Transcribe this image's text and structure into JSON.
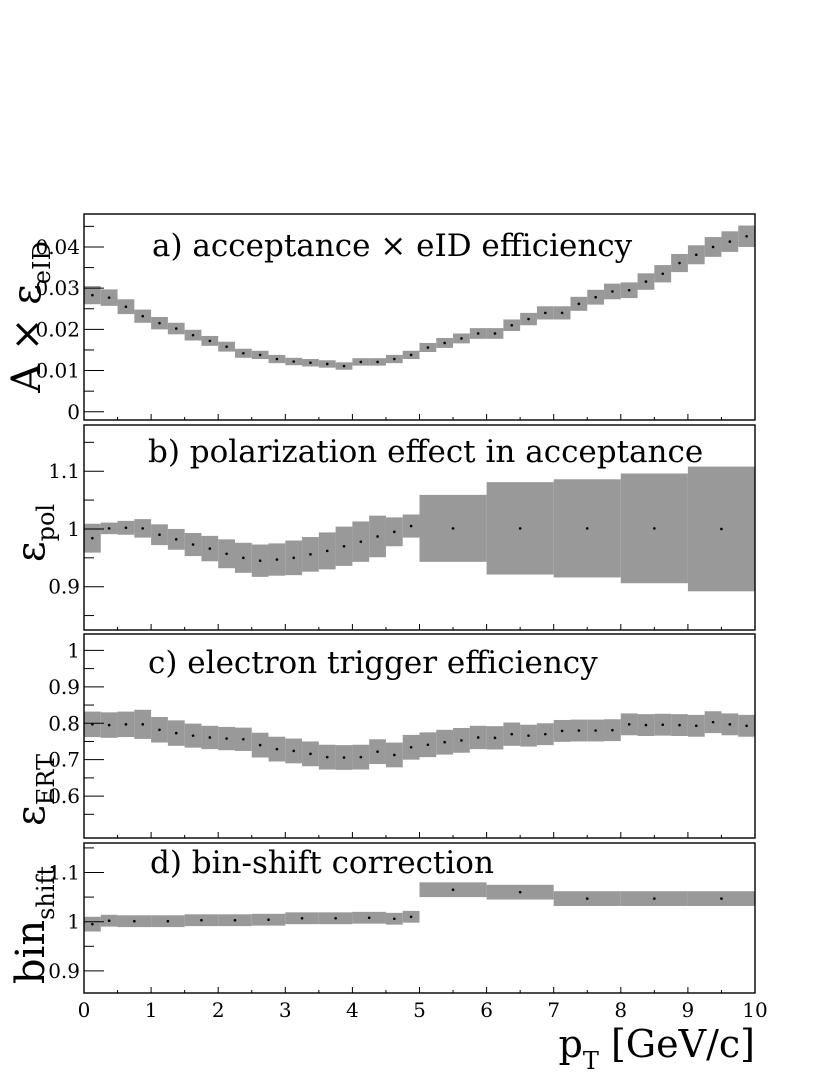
{
  "chart_data": [
    {
      "type": "scatter",
      "panel": "a",
      "title": "a) acceptance × eID efficiency",
      "ylabel_main": "A × ε",
      "ylabel_sub": "eID",
      "xlim": [
        0,
        10
      ],
      "ylim": [
        -0.002,
        0.048
      ],
      "yticks": [
        0,
        0.01,
        0.02,
        0.03,
        0.04
      ],
      "ytick_labels": [
        "0",
        "0.01",
        "0.02",
        "0.03",
        "0.04"
      ],
      "points": [
        {
          "x0": 0.0,
          "x1": 0.25,
          "y": 0.0283,
          "err": 0.0022
        },
        {
          "x0": 0.25,
          "x1": 0.5,
          "y": 0.0277,
          "err": 0.002
        },
        {
          "x0": 0.5,
          "x1": 0.75,
          "y": 0.0255,
          "err": 0.0018
        },
        {
          "x0": 0.75,
          "x1": 1.0,
          "y": 0.0232,
          "err": 0.0016
        },
        {
          "x0": 1.0,
          "x1": 1.25,
          "y": 0.0215,
          "err": 0.0015
        },
        {
          "x0": 1.25,
          "x1": 1.5,
          "y": 0.0202,
          "err": 0.0014
        },
        {
          "x0": 1.5,
          "x1": 1.75,
          "y": 0.0186,
          "err": 0.0013
        },
        {
          "x0": 1.75,
          "x1": 2.0,
          "y": 0.0172,
          "err": 0.0012
        },
        {
          "x0": 2.0,
          "x1": 2.25,
          "y": 0.0158,
          "err": 0.0012
        },
        {
          "x0": 2.25,
          "x1": 2.5,
          "y": 0.0142,
          "err": 0.0011
        },
        {
          "x0": 2.5,
          "x1": 2.75,
          "y": 0.0138,
          "err": 0.001
        },
        {
          "x0": 2.75,
          "x1": 3.0,
          "y": 0.0128,
          "err": 0.001
        },
        {
          "x0": 3.0,
          "x1": 3.25,
          "y": 0.0122,
          "err": 0.0009
        },
        {
          "x0": 3.25,
          "x1": 3.5,
          "y": 0.0119,
          "err": 0.0009
        },
        {
          "x0": 3.5,
          "x1": 3.75,
          "y": 0.0116,
          "err": 0.0009
        },
        {
          "x0": 3.75,
          "x1": 4.0,
          "y": 0.0111,
          "err": 0.0009
        },
        {
          "x0": 4.0,
          "x1": 4.25,
          "y": 0.0121,
          "err": 0.0009
        },
        {
          "x0": 4.25,
          "x1": 4.5,
          "y": 0.0121,
          "err": 0.0009
        },
        {
          "x0": 4.5,
          "x1": 4.75,
          "y": 0.0128,
          "err": 0.001
        },
        {
          "x0": 4.75,
          "x1": 5.0,
          "y": 0.0138,
          "err": 0.001
        },
        {
          "x0": 5.0,
          "x1": 5.25,
          "y": 0.0156,
          "err": 0.0011
        },
        {
          "x0": 5.25,
          "x1": 5.5,
          "y": 0.0167,
          "err": 0.0012
        },
        {
          "x0": 5.5,
          "x1": 5.75,
          "y": 0.0178,
          "err": 0.0012
        },
        {
          "x0": 5.75,
          "x1": 6.0,
          "y": 0.019,
          "err": 0.0013
        },
        {
          "x0": 6.0,
          "x1": 6.25,
          "y": 0.019,
          "err": 0.0013
        },
        {
          "x0": 6.25,
          "x1": 6.5,
          "y": 0.021,
          "err": 0.0014
        },
        {
          "x0": 6.5,
          "x1": 6.75,
          "y": 0.0225,
          "err": 0.0015
        },
        {
          "x0": 6.75,
          "x1": 7.0,
          "y": 0.024,
          "err": 0.0016
        },
        {
          "x0": 7.0,
          "x1": 7.25,
          "y": 0.024,
          "err": 0.0016
        },
        {
          "x0": 7.25,
          "x1": 7.5,
          "y": 0.0262,
          "err": 0.0017
        },
        {
          "x0": 7.5,
          "x1": 7.75,
          "y": 0.0278,
          "err": 0.0018
        },
        {
          "x0": 7.75,
          "x1": 8.0,
          "y": 0.0292,
          "err": 0.0019
        },
        {
          "x0": 8.0,
          "x1": 8.25,
          "y": 0.0295,
          "err": 0.0019
        },
        {
          "x0": 8.25,
          "x1": 8.5,
          "y": 0.0316,
          "err": 0.002
        },
        {
          "x0": 8.5,
          "x1": 8.75,
          "y": 0.0335,
          "err": 0.0021
        },
        {
          "x0": 8.75,
          "x1": 9.0,
          "y": 0.0361,
          "err": 0.0022
        },
        {
          "x0": 9.0,
          "x1": 9.25,
          "y": 0.0381,
          "err": 0.0023
        },
        {
          "x0": 9.25,
          "x1": 9.5,
          "y": 0.04,
          "err": 0.0024
        },
        {
          "x0": 9.5,
          "x1": 9.75,
          "y": 0.0413,
          "err": 0.0025
        },
        {
          "x0": 9.75,
          "x1": 10.0,
          "y": 0.0426,
          "err": 0.0026
        }
      ]
    },
    {
      "type": "scatter",
      "panel": "b",
      "title": "b) polarization effect in acceptance",
      "ylabel_main": "ε",
      "ylabel_sub": "pol",
      "xlim": [
        0,
        10
      ],
      "ylim": [
        0.825,
        1.18
      ],
      "yticks": [
        0.9,
        1,
        1.1
      ],
      "ytick_labels": [
        "0.9",
        "1",
        "1.1"
      ],
      "points": [
        {
          "x0": 0.0,
          "x1": 0.25,
          "y": 0.984,
          "err": 0.025
        },
        {
          "x0": 0.25,
          "x1": 0.5,
          "y": 1.001,
          "err": 0.01
        },
        {
          "x0": 0.5,
          "x1": 0.75,
          "y": 1.002,
          "err": 0.012
        },
        {
          "x0": 0.75,
          "x1": 1.0,
          "y": 1.001,
          "err": 0.016
        },
        {
          "x0": 1.0,
          "x1": 1.25,
          "y": 0.99,
          "err": 0.018
        },
        {
          "x0": 1.25,
          "x1": 1.5,
          "y": 0.982,
          "err": 0.018
        },
        {
          "x0": 1.5,
          "x1": 1.75,
          "y": 0.973,
          "err": 0.02
        },
        {
          "x0": 1.75,
          "x1": 2.0,
          "y": 0.966,
          "err": 0.022
        },
        {
          "x0": 2.0,
          "x1": 2.25,
          "y": 0.957,
          "err": 0.025
        },
        {
          "x0": 2.25,
          "x1": 2.5,
          "y": 0.95,
          "err": 0.026
        },
        {
          "x0": 2.5,
          "x1": 2.75,
          "y": 0.945,
          "err": 0.028
        },
        {
          "x0": 2.75,
          "x1": 3.0,
          "y": 0.947,
          "err": 0.028
        },
        {
          "x0": 3.0,
          "x1": 3.25,
          "y": 0.95,
          "err": 0.03
        },
        {
          "x0": 3.25,
          "x1": 3.5,
          "y": 0.956,
          "err": 0.03
        },
        {
          "x0": 3.5,
          "x1": 3.75,
          "y": 0.962,
          "err": 0.032
        },
        {
          "x0": 3.75,
          "x1": 4.0,
          "y": 0.97,
          "err": 0.034
        },
        {
          "x0": 4.0,
          "x1": 4.25,
          "y": 0.978,
          "err": 0.035
        },
        {
          "x0": 4.25,
          "x1": 4.5,
          "y": 0.987,
          "err": 0.036
        },
        {
          "x0": 4.5,
          "x1": 4.75,
          "y": 0.995,
          "err": 0.025
        },
        {
          "x0": 4.75,
          "x1": 5.0,
          "y": 1.005,
          "err": 0.02
        },
        {
          "x0": 5.0,
          "x1": 6.0,
          "y": 1.001,
          "err": 0.058
        },
        {
          "x0": 6.0,
          "x1": 7.0,
          "y": 1.001,
          "err": 0.08
        },
        {
          "x0": 7.0,
          "x1": 8.0,
          "y": 1.001,
          "err": 0.085
        },
        {
          "x0": 8.0,
          "x1": 9.0,
          "y": 1.001,
          "err": 0.095
        },
        {
          "x0": 9.0,
          "x1": 10.0,
          "y": 1.0,
          "err": 0.108
        }
      ]
    },
    {
      "type": "scatter",
      "panel": "c",
      "title": "c) electron trigger efficiency",
      "ylabel_main": "ε",
      "ylabel_sub": "ERT",
      "xlim": [
        0,
        10
      ],
      "ylim": [
        0.485,
        1.045
      ],
      "yticks": [
        0.6,
        0.7,
        0.8,
        0.9,
        1.0
      ],
      "ytick_labels": [
        "0.6",
        "0.7",
        "0.8",
        "0.9",
        "1"
      ],
      "points": [
        {
          "x0": 0.0,
          "x1": 0.25,
          "y": 0.797,
          "err": 0.035
        },
        {
          "x0": 0.25,
          "x1": 0.5,
          "y": 0.795,
          "err": 0.035
        },
        {
          "x0": 0.5,
          "x1": 0.75,
          "y": 0.797,
          "err": 0.035
        },
        {
          "x0": 0.75,
          "x1": 1.0,
          "y": 0.797,
          "err": 0.04
        },
        {
          "x0": 1.0,
          "x1": 1.25,
          "y": 0.782,
          "err": 0.035
        },
        {
          "x0": 1.25,
          "x1": 1.5,
          "y": 0.773,
          "err": 0.035
        },
        {
          "x0": 1.5,
          "x1": 1.75,
          "y": 0.766,
          "err": 0.033
        },
        {
          "x0": 1.75,
          "x1": 2.0,
          "y": 0.761,
          "err": 0.032
        },
        {
          "x0": 2.0,
          "x1": 2.25,
          "y": 0.758,
          "err": 0.032
        },
        {
          "x0": 2.25,
          "x1": 2.5,
          "y": 0.756,
          "err": 0.032
        },
        {
          "x0": 2.5,
          "x1": 2.75,
          "y": 0.74,
          "err": 0.034
        },
        {
          "x0": 2.75,
          "x1": 3.0,
          "y": 0.729,
          "err": 0.034
        },
        {
          "x0": 3.0,
          "x1": 3.25,
          "y": 0.724,
          "err": 0.034
        },
        {
          "x0": 3.25,
          "x1": 3.5,
          "y": 0.716,
          "err": 0.034
        },
        {
          "x0": 3.5,
          "x1": 3.75,
          "y": 0.707,
          "err": 0.034
        },
        {
          "x0": 3.75,
          "x1": 4.0,
          "y": 0.706,
          "err": 0.034
        },
        {
          "x0": 4.0,
          "x1": 4.25,
          "y": 0.707,
          "err": 0.034
        },
        {
          "x0": 4.25,
          "x1": 4.5,
          "y": 0.722,
          "err": 0.034
        },
        {
          "x0": 4.5,
          "x1": 4.75,
          "y": 0.713,
          "err": 0.034
        },
        {
          "x0": 4.75,
          "x1": 5.0,
          "y": 0.734,
          "err": 0.034
        },
        {
          "x0": 5.0,
          "x1": 5.25,
          "y": 0.741,
          "err": 0.034
        },
        {
          "x0": 5.25,
          "x1": 5.5,
          "y": 0.748,
          "err": 0.034
        },
        {
          "x0": 5.5,
          "x1": 5.75,
          "y": 0.753,
          "err": 0.034
        },
        {
          "x0": 5.75,
          "x1": 6.0,
          "y": 0.761,
          "err": 0.032
        },
        {
          "x0": 6.0,
          "x1": 6.25,
          "y": 0.76,
          "err": 0.032
        },
        {
          "x0": 6.25,
          "x1": 6.5,
          "y": 0.77,
          "err": 0.032
        },
        {
          "x0": 6.5,
          "x1": 6.75,
          "y": 0.766,
          "err": 0.03
        },
        {
          "x0": 6.75,
          "x1": 7.0,
          "y": 0.77,
          "err": 0.03
        },
        {
          "x0": 7.0,
          "x1": 7.25,
          "y": 0.779,
          "err": 0.03
        },
        {
          "x0": 7.25,
          "x1": 7.5,
          "y": 0.78,
          "err": 0.03
        },
        {
          "x0": 7.5,
          "x1": 7.75,
          "y": 0.78,
          "err": 0.03
        },
        {
          "x0": 7.75,
          "x1": 8.0,
          "y": 0.781,
          "err": 0.03
        },
        {
          "x0": 8.0,
          "x1": 8.25,
          "y": 0.797,
          "err": 0.03
        },
        {
          "x0": 8.25,
          "x1": 8.5,
          "y": 0.795,
          "err": 0.03
        },
        {
          "x0": 8.5,
          "x1": 8.75,
          "y": 0.796,
          "err": 0.03
        },
        {
          "x0": 8.75,
          "x1": 9.0,
          "y": 0.795,
          "err": 0.03
        },
        {
          "x0": 9.0,
          "x1": 9.25,
          "y": 0.793,
          "err": 0.03
        },
        {
          "x0": 9.25,
          "x1": 9.5,
          "y": 0.803,
          "err": 0.03
        },
        {
          "x0": 9.5,
          "x1": 9.75,
          "y": 0.797,
          "err": 0.03
        },
        {
          "x0": 9.75,
          "x1": 10.0,
          "y": 0.793,
          "err": 0.03
        }
      ]
    },
    {
      "type": "scatter",
      "panel": "d",
      "title": "d) bin-shift correction",
      "ylabel_main": "bin",
      "ylabel_sub": "shift",
      "xlim": [
        0,
        10
      ],
      "ylim": [
        0.855,
        1.16
      ],
      "yticks": [
        0.9,
        1,
        1.1
      ],
      "ytick_labels": [
        "0.9",
        "1",
        "1.1"
      ],
      "points": [
        {
          "x0": 0.0,
          "x1": 0.25,
          "y": 0.995,
          "err": 0.015
        },
        {
          "x0": 0.25,
          "x1": 0.5,
          "y": 1.002,
          "err": 0.012
        },
        {
          "x0": 0.5,
          "x1": 1.0,
          "y": 1.001,
          "err": 0.012
        },
        {
          "x0": 1.0,
          "x1": 1.5,
          "y": 1.001,
          "err": 0.012
        },
        {
          "x0": 1.5,
          "x1": 2.0,
          "y": 1.003,
          "err": 0.012
        },
        {
          "x0": 2.0,
          "x1": 2.5,
          "y": 1.003,
          "err": 0.012
        },
        {
          "x0": 2.5,
          "x1": 3.0,
          "y": 1.004,
          "err": 0.012
        },
        {
          "x0": 3.0,
          "x1": 3.5,
          "y": 1.007,
          "err": 0.012
        },
        {
          "x0": 3.5,
          "x1": 4.0,
          "y": 1.007,
          "err": 0.012
        },
        {
          "x0": 4.0,
          "x1": 4.5,
          "y": 1.008,
          "err": 0.012
        },
        {
          "x0": 4.5,
          "x1": 4.75,
          "y": 1.006,
          "err": 0.012
        },
        {
          "x0": 4.75,
          "x1": 5.0,
          "y": 1.01,
          "err": 0.012
        },
        {
          "x0": 5.0,
          "x1": 6.0,
          "y": 1.065,
          "err": 0.015
        },
        {
          "x0": 6.0,
          "x1": 7.0,
          "y": 1.06,
          "err": 0.015
        },
        {
          "x0": 7.0,
          "x1": 8.0,
          "y": 1.047,
          "err": 0.015
        },
        {
          "x0": 8.0,
          "x1": 9.0,
          "y": 1.047,
          "err": 0.015
        },
        {
          "x0": 9.0,
          "x1": 10.0,
          "y": 1.047,
          "err": 0.015
        }
      ]
    }
  ],
  "x_axis": {
    "ticks": [
      0,
      1,
      2,
      3,
      4,
      5,
      6,
      7,
      8,
      9,
      10
    ],
    "tick_labels": [
      "0",
      "1",
      "2",
      "3",
      "4",
      "5",
      "6",
      "7",
      "8",
      "9",
      "10"
    ],
    "label_main": "p",
    "label_sub": "T",
    "label_unit": " [GeV/c]"
  },
  "colors": {
    "band": "#999999",
    "marker": "#000000",
    "axis": "#000000"
  }
}
